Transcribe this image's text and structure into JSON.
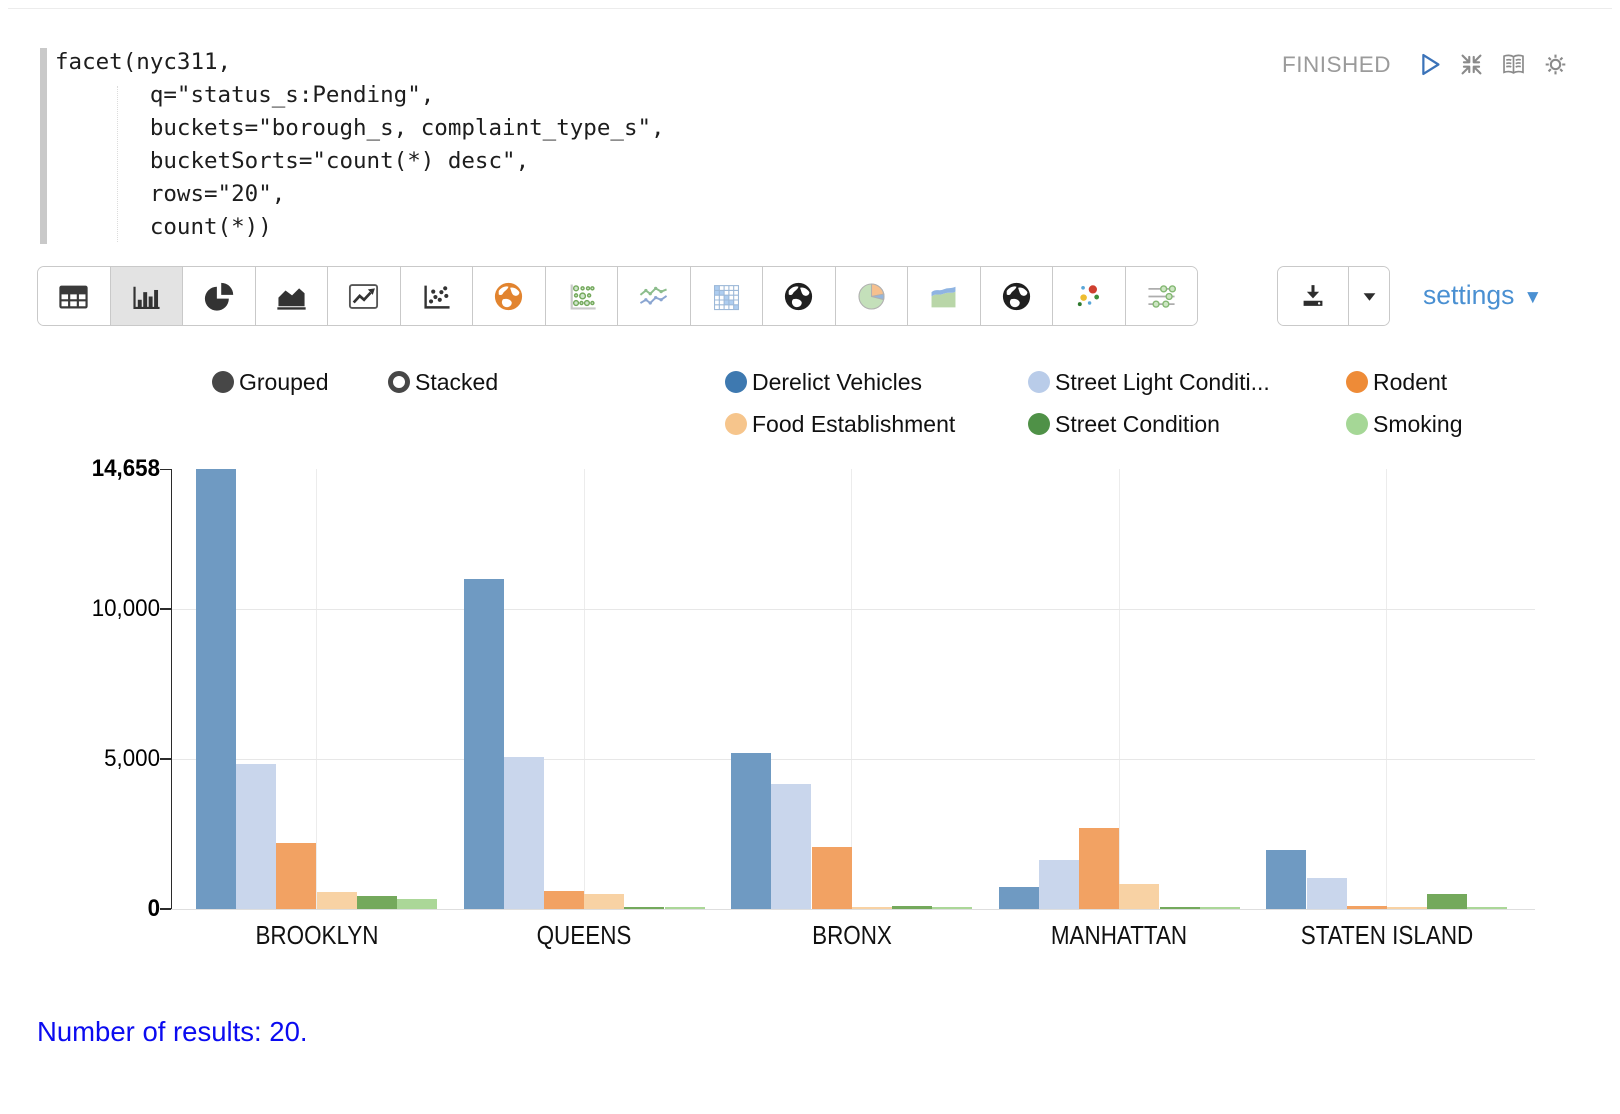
{
  "paragraph": {
    "status": "FINISHED",
    "code_lines": [
      "facet(nyc311,",
      "       q=\"status_s:Pending\",",
      "       buckets=\"borough_s, complaint_type_s\",",
      "       bucketSorts=\"count(*) desc\",",
      "       rows=\"20\",",
      "       count(*))"
    ],
    "controls": [
      {
        "icon": "run-icon"
      },
      {
        "icon": "collapse-icon"
      },
      {
        "icon": "notebook-icon"
      },
      {
        "icon": "gear-icon"
      }
    ]
  },
  "toolbar": {
    "chart_types": [
      {
        "icon": "table-icon",
        "selected": false
      },
      {
        "icon": "bar-chart-icon",
        "selected": true
      },
      {
        "icon": "pie-chart-icon",
        "selected": false
      },
      {
        "icon": "area-chart-icon",
        "selected": false
      },
      {
        "icon": "line-chart-icon",
        "selected": false
      },
      {
        "icon": "scatter-plot-icon",
        "selected": false
      },
      {
        "icon": "map-globe-orange-icon",
        "selected": false
      },
      {
        "icon": "bubble-matrix-icon",
        "selected": false
      },
      {
        "icon": "multi-line-chart-icon",
        "selected": false
      },
      {
        "icon": "heatmap-icon",
        "selected": false
      },
      {
        "icon": "globe-dark-icon",
        "selected": false
      },
      {
        "icon": "pie-colored-icon",
        "selected": false
      },
      {
        "icon": "area-colored-icon",
        "selected": false
      },
      {
        "icon": "globe-dark2-icon",
        "selected": false
      },
      {
        "icon": "scatter-colored-icon",
        "selected": false
      },
      {
        "icon": "slider-filter-icon",
        "selected": false
      }
    ],
    "settings_label": "settings"
  },
  "legend": {
    "modes": [
      {
        "label": "Grouped",
        "selected": true
      },
      {
        "label": "Stacked",
        "selected": false
      }
    ]
  },
  "chart_data": {
    "type": "bar",
    "mode": "grouped",
    "grid": true,
    "legend_position": "top",
    "categories": [
      "BROOKLYN",
      "QUEENS",
      "BRONX",
      "MANHATTAN",
      "STATEN ISLAND"
    ],
    "series": [
      {
        "label": "Derelict Vehicles",
        "color": "#3e79b0",
        "bar_color": "#6f9ac2",
        "values": [
          14658,
          11000,
          5200,
          730,
          1970
        ]
      },
      {
        "label": "Street Light Conditi...",
        "color": "#b9cce9",
        "bar_color": "#c9d6ec",
        "values": [
          4840,
          5080,
          4170,
          1640,
          1040
        ]
      },
      {
        "label": "Rodent",
        "color": "#ee8b37",
        "bar_color": "#f2a263",
        "values": [
          2200,
          600,
          2070,
          2700,
          110
        ]
      },
      {
        "label": "Food Establishment",
        "color": "#f6c58c",
        "bar_color": "#f8d2a4",
        "values": [
          570,
          500,
          60,
          840,
          60
        ]
      },
      {
        "label": "Street Condition",
        "color": "#4f9147",
        "bar_color": "#74a95c",
        "values": [
          430,
          70,
          100,
          80,
          500
        ]
      },
      {
        "label": "Smoking",
        "color": "#a5d796",
        "bar_color": "#abd798",
        "values": [
          330,
          40,
          50,
          40,
          50
        ]
      }
    ],
    "y_axis": {
      "ticks": [
        {
          "value": 0,
          "label": "0",
          "bold": true
        },
        {
          "value": 5000,
          "label": "5,000",
          "bold": false
        },
        {
          "value": 10000,
          "label": "10,000",
          "bold": false
        },
        {
          "value": 14658,
          "label": "14,658",
          "bold": true
        }
      ],
      "max": 14658
    },
    "ylim": [
      0,
      14658
    ],
    "title": "",
    "xlabel": "",
    "ylabel": ""
  },
  "footer": {
    "results_text": "Number of results: 20."
  },
  "colors": {
    "settings_link": "#4a90d2",
    "results_text": "#0b0bf0",
    "status_text": "#9b9b9b",
    "toolbar_border": "#c9c9c9",
    "selected_button_bg": "#e3e3e3",
    "gridline": "#e7e7e7",
    "axis_line": "#2b2b2b"
  }
}
